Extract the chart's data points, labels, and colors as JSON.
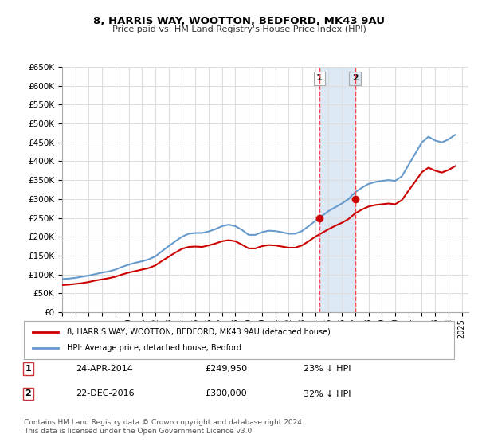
{
  "title": "8, HARRIS WAY, WOOTTON, BEDFORD, MK43 9AU",
  "subtitle": "Price paid vs. HM Land Registry's House Price Index (HPI)",
  "xlabel": "",
  "ylabel": "",
  "ylim": [
    0,
    650000
  ],
  "yticks": [
    0,
    50000,
    100000,
    150000,
    200000,
    250000,
    300000,
    350000,
    400000,
    450000,
    500000,
    550000,
    600000,
    650000
  ],
  "xlim_start": 1995.0,
  "xlim_end": 2025.5,
  "bg_color": "#ffffff",
  "grid_color": "#dddddd",
  "hpi_color": "#6699cc",
  "price_color": "#cc0000",
  "sale1_date": 2014.31,
  "sale1_price": 249950,
  "sale2_date": 2016.98,
  "sale2_price": 300000,
  "shade_color": "#dde8f5",
  "vline_color": "#ff4444",
  "legend_line1": "8, HARRIS WAY, WOOTTON, BEDFORD, MK43 9AU (detached house)",
  "legend_line2": "HPI: Average price, detached house, Bedford",
  "ann1_num": "1",
  "ann1_date": "24-APR-2014",
  "ann1_price": "£249,950",
  "ann1_pct": "23% ↓ HPI",
  "ann2_num": "2",
  "ann2_date": "22-DEC-2016",
  "ann2_price": "£300,000",
  "ann2_pct": "32% ↓ HPI",
  "footer": "Contains HM Land Registry data © Crown copyright and database right 2024.\nThis data is licensed under the Open Government Licence v3.0.",
  "hpi_data_x": [
    1995.0,
    1995.5,
    1996.0,
    1996.5,
    1997.0,
    1997.5,
    1998.0,
    1998.5,
    1999.0,
    1999.5,
    2000.0,
    2000.5,
    2001.0,
    2001.5,
    2002.0,
    2002.5,
    2003.0,
    2003.5,
    2004.0,
    2004.5,
    2005.0,
    2005.5,
    2006.0,
    2006.5,
    2007.0,
    2007.5,
    2008.0,
    2008.5,
    2009.0,
    2009.5,
    2010.0,
    2010.5,
    2011.0,
    2011.5,
    2012.0,
    2012.5,
    2013.0,
    2013.5,
    2014.0,
    2014.5,
    2015.0,
    2015.5,
    2016.0,
    2016.5,
    2017.0,
    2017.5,
    2018.0,
    2018.5,
    2019.0,
    2019.5,
    2020.0,
    2020.5,
    2021.0,
    2021.5,
    2022.0,
    2022.5,
    2023.0,
    2023.5,
    2024.0,
    2024.5
  ],
  "hpi_data_y": [
    88000,
    89000,
    91000,
    94000,
    97000,
    101000,
    105000,
    108000,
    113000,
    120000,
    126000,
    131000,
    135000,
    140000,
    148000,
    162000,
    175000,
    188000,
    200000,
    208000,
    210000,
    210000,
    214000,
    220000,
    228000,
    232000,
    228000,
    218000,
    205000,
    205000,
    212000,
    216000,
    215000,
    212000,
    208000,
    208000,
    215000,
    228000,
    242000,
    255000,
    268000,
    278000,
    288000,
    300000,
    318000,
    330000,
    340000,
    345000,
    348000,
    350000,
    348000,
    360000,
    390000,
    420000,
    450000,
    465000,
    455000,
    450000,
    458000,
    470000
  ],
  "price_data_x": [
    1995.0,
    1995.5,
    1996.0,
    1996.5,
    1997.0,
    1997.5,
    1998.0,
    1998.5,
    1999.0,
    1999.5,
    2000.0,
    2000.5,
    2001.0,
    2001.5,
    2002.0,
    2002.5,
    2003.0,
    2003.5,
    2004.0,
    2004.5,
    2005.0,
    2005.5,
    2006.0,
    2006.5,
    2007.0,
    2007.5,
    2008.0,
    2008.5,
    2009.0,
    2009.5,
    2010.0,
    2010.5,
    2011.0,
    2011.5,
    2012.0,
    2012.5,
    2013.0,
    2013.5,
    2014.0,
    2014.5,
    2015.0,
    2015.5,
    2016.0,
    2016.5,
    2017.0,
    2017.5,
    2018.0,
    2018.5,
    2019.0,
    2019.5,
    2020.0,
    2020.5,
    2021.0,
    2021.5,
    2022.0,
    2022.5,
    2023.0,
    2023.5,
    2024.0,
    2024.5
  ],
  "price_data_y": [
    72000,
    73000,
    75000,
    77000,
    80000,
    84000,
    87000,
    90000,
    94000,
    100000,
    105000,
    109000,
    113000,
    117000,
    124000,
    136000,
    147000,
    158000,
    168000,
    173000,
    174000,
    173000,
    177000,
    182000,
    188000,
    191000,
    188000,
    179000,
    169000,
    169000,
    175000,
    178000,
    177000,
    174000,
    171000,
    171000,
    177000,
    188000,
    200000,
    210000,
    220000,
    229000,
    237000,
    247000,
    262000,
    272000,
    280000,
    284000,
    286000,
    288000,
    286000,
    297000,
    322000,
    346000,
    371000,
    383000,
    375000,
    370000,
    377000,
    387000
  ]
}
